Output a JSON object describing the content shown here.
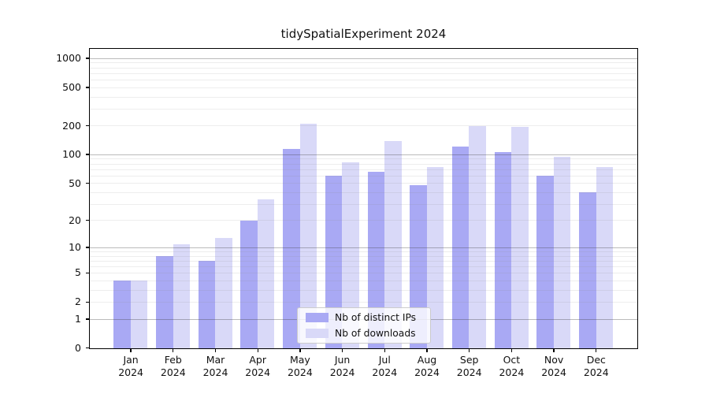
{
  "title": "tidySpatialExperiment 2024",
  "chart_data": {
    "type": "bar",
    "title": "tidySpatialExperiment 2024",
    "categories": [
      "Jan",
      "Feb",
      "Mar",
      "Apr",
      "May",
      "Jun",
      "Jul",
      "Aug",
      "Sep",
      "Oct",
      "Nov",
      "Dec"
    ],
    "x_year_label": "2024",
    "series": [
      {
        "name": "Nb of distinct IPs",
        "color": "#a9a9f4",
        "values": [
          4,
          8,
          7,
          20,
          115,
          60,
          67,
          48,
          122,
          107,
          60,
          40
        ]
      },
      {
        "name": "Nb of downloads",
        "color": "#d9d9f8",
        "values": [
          4,
          11,
          13,
          34,
          210,
          84,
          138,
          75,
          200,
          196,
          95,
          75
        ]
      }
    ],
    "yscale": "log(value+1)",
    "ylim": [
      0,
      1100
    ],
    "yticks": [
      0,
      1,
      2,
      5,
      10,
      20,
      50,
      100,
      200,
      500,
      1000
    ],
    "minor_gridlines": [
      2,
      3,
      4,
      5,
      6,
      7,
      8,
      9,
      20,
      30,
      40,
      50,
      60,
      70,
      80,
      90,
      200,
      300,
      400,
      500,
      600,
      700,
      800,
      900
    ],
    "major_gridlines": [
      1,
      10,
      100,
      1000
    ],
    "grid": true,
    "legend_position": "lower center",
    "xlabel": "",
    "ylabel": ""
  },
  "colors": {
    "ips_bar": "#a9a9f4",
    "downloads_bar": "#d9d9f8",
    "axis": "#000000",
    "major_grid": "#bbbbbb",
    "minor_grid": "#ececec"
  }
}
